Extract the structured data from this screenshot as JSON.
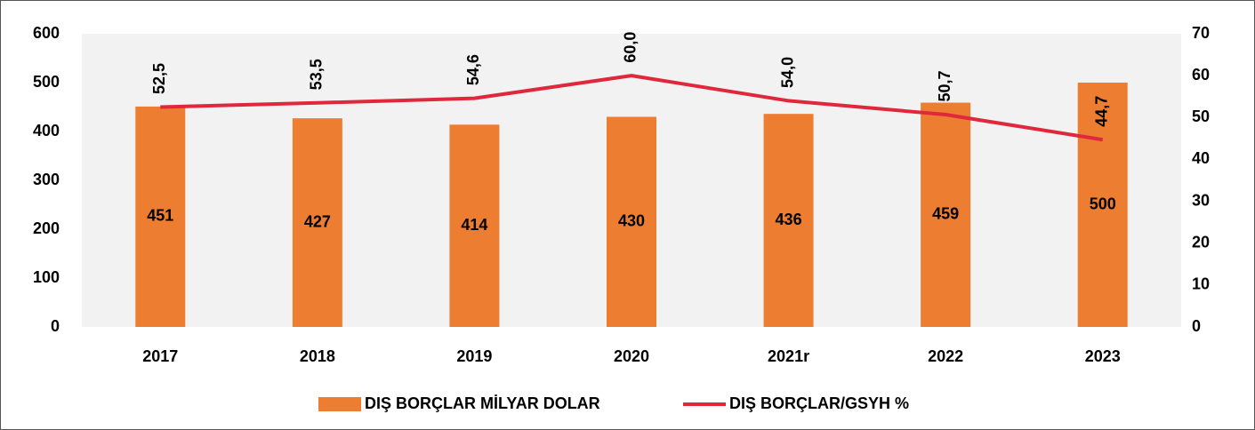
{
  "chart_data": {
    "type": "bar",
    "categories": [
      "2017",
      "2018",
      "2019",
      "2020",
      "2021r",
      "2022",
      "2023"
    ],
    "series": [
      {
        "name": "DIŞ BORÇLAR MİLYAR DOLAR",
        "type": "bar",
        "color": "#ed7d31",
        "values": [
          451,
          427,
          414,
          430,
          436,
          459,
          500
        ]
      },
      {
        "name": "DIŞ BORÇLAR/GSYH %",
        "type": "line",
        "axis": "y2",
        "color": "#e0283c",
        "values": [
          52.5,
          53.5,
          54.6,
          60.0,
          54.0,
          50.7,
          44.7
        ],
        "value_labels": [
          "52,5",
          "53,5",
          "54,6",
          "60,0",
          "54,0",
          "50,7",
          "44,7"
        ]
      }
    ],
    "ylim": [
      0,
      600
    ],
    "yticks": [
      0,
      100,
      200,
      300,
      400,
      500,
      600
    ],
    "y2lim": [
      0,
      70
    ],
    "y2ticks": [
      0,
      10,
      20,
      30,
      40,
      50,
      60,
      70
    ],
    "legend": "bottom"
  }
}
